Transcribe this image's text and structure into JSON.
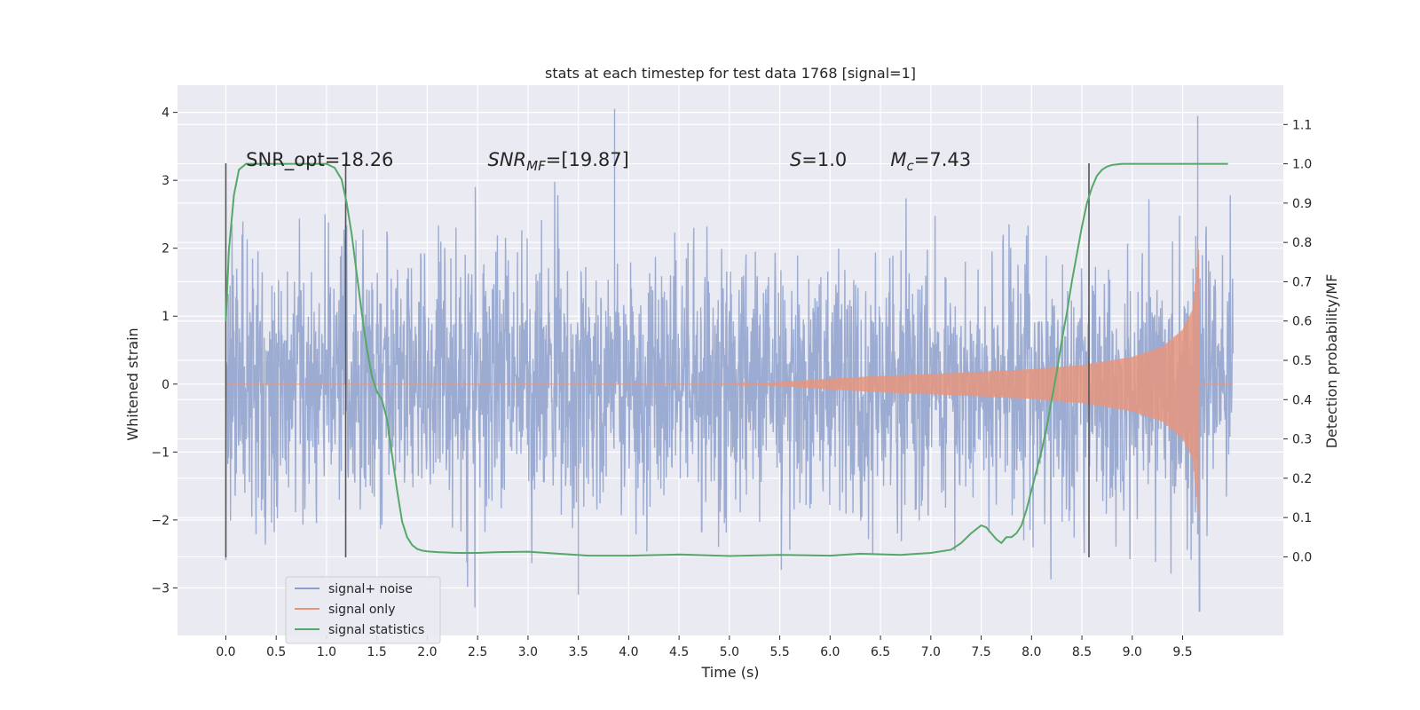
{
  "chart_data": {
    "type": "line",
    "title": "stats at each timestep for test data 1768 [signal=1]",
    "xlabel": "Time (s)",
    "ylabel": "Whitened strain",
    "y2label": "Detection probability/MF",
    "xlim": [
      -0.48,
      10.5
    ],
    "ylim": [
      -3.7,
      4.4
    ],
    "y2lim": [
      -0.2,
      1.2
    ],
    "xticks": [
      0.0,
      0.5,
      1.0,
      1.5,
      2.0,
      2.5,
      3.0,
      3.5,
      4.0,
      4.5,
      5.0,
      5.5,
      6.0,
      6.5,
      7.0,
      7.5,
      8.0,
      8.5,
      9.0,
      9.5
    ],
    "xtick_labels": [
      "0.0",
      "0.5",
      "1.0",
      "1.5",
      "2.0",
      "2.5",
      "3.0",
      "3.5",
      "4.0",
      "4.5",
      "5.0",
      "5.5",
      "6.0",
      "6.5",
      "7.0",
      "7.5",
      "8.0",
      "8.5",
      "9.0",
      "9.5"
    ],
    "yticks": [
      -3,
      -2,
      -1,
      0,
      1,
      2,
      3,
      4
    ],
    "ytick_labels": [
      "−3",
      "−2",
      "−1",
      "0",
      "1",
      "2",
      "3",
      "4"
    ],
    "y2ticks": [
      0.0,
      0.1,
      0.2,
      0.3,
      0.4,
      0.5,
      0.6,
      0.7,
      0.8,
      0.9,
      1.0,
      1.1
    ],
    "y2tick_labels": [
      "0.0",
      "0.1",
      "0.2",
      "0.3",
      "0.4",
      "0.5",
      "0.6",
      "0.7",
      "0.8",
      "0.9",
      "1.0",
      "1.1"
    ],
    "grid": true,
    "legend_position": "bottom-left",
    "series": [
      {
        "name": "signal+ noise",
        "axis": "left",
        "color": "#8da0cb",
        "description_duration_s": [
          0.0,
          10.0
        ],
        "approx_range": [
          -3.35,
          4.05
        ],
        "notable_peaks": [
          [
            3.86,
            4.05
          ],
          [
            9.65,
            3.95
          ],
          [
            3.5,
            -3.1
          ],
          [
            9.67,
            -3.35
          ]
        ]
      },
      {
        "name": "signal only",
        "axis": "left",
        "color": "#e5957e",
        "envelope": {
          "t": [
            0.0,
            5.0,
            5.5,
            6.0,
            6.5,
            7.0,
            7.5,
            8.0,
            8.5,
            9.0,
            9.3,
            9.5,
            9.6,
            9.66
          ],
          "amp": [
            0.0,
            0.0,
            0.03,
            0.08,
            0.12,
            0.15,
            0.18,
            0.22,
            0.28,
            0.4,
            0.55,
            0.8,
            1.1,
            2.0
          ]
        }
      },
      {
        "name": "signal statistics",
        "axis": "right",
        "color": "#55a868",
        "t": [
          0.0,
          0.03,
          0.08,
          0.13,
          0.2,
          0.35,
          0.5,
          0.7,
          0.85,
          1.0,
          1.08,
          1.15,
          1.2,
          1.25,
          1.3,
          1.35,
          1.4,
          1.45,
          1.5,
          1.55,
          1.6,
          1.65,
          1.7,
          1.75,
          1.8,
          1.85,
          1.9,
          1.95,
          2.0,
          2.1,
          2.3,
          2.5,
          2.7,
          3.0,
          3.3,
          3.6,
          4.0,
          4.5,
          5.0,
          5.5,
          6.0,
          6.3,
          6.7,
          7.0,
          7.2,
          7.3,
          7.4,
          7.5,
          7.55,
          7.6,
          7.65,
          7.7,
          7.75,
          7.8,
          7.85,
          7.9,
          7.95,
          8.0,
          8.05,
          8.1,
          8.15,
          8.2,
          8.25,
          8.3,
          8.35,
          8.4,
          8.45,
          8.5,
          8.55,
          8.6,
          8.65,
          8.7,
          8.75,
          8.8,
          8.9,
          9.0,
          9.3,
          9.6,
          9.95
        ],
        "values": [
          0.6,
          0.78,
          0.92,
          0.985,
          1.0,
          1.0,
          1.0,
          1.0,
          1.0,
          1.0,
          0.99,
          0.96,
          0.9,
          0.82,
          0.72,
          0.62,
          0.53,
          0.46,
          0.42,
          0.4,
          0.35,
          0.26,
          0.17,
          0.09,
          0.05,
          0.03,
          0.02,
          0.016,
          0.014,
          0.012,
          0.01,
          0.01,
          0.012,
          0.013,
          0.008,
          0.003,
          0.003,
          0.006,
          0.002,
          0.005,
          0.003,
          0.008,
          0.005,
          0.01,
          0.018,
          0.035,
          0.06,
          0.08,
          0.075,
          0.06,
          0.045,
          0.035,
          0.05,
          0.05,
          0.06,
          0.08,
          0.12,
          0.17,
          0.22,
          0.27,
          0.33,
          0.4,
          0.47,
          0.55,
          0.62,
          0.7,
          0.77,
          0.84,
          0.9,
          0.94,
          0.97,
          0.985,
          0.993,
          0.997,
          1.0,
          1.0,
          1.0,
          1.0,
          1.0
        ]
      }
    ],
    "vertical_lines": [
      {
        "x": 0.0,
        "y_range": [
          -2.55,
          3.25
        ]
      },
      {
        "x": 1.19,
        "y_range": [
          -2.55,
          3.25
        ]
      },
      {
        "x": 8.57,
        "y_range": [
          -2.55,
          3.25
        ]
      }
    ],
    "annotations": [
      {
        "id": "snr-opt",
        "text": "SNR_opt=18.26",
        "x": 0.2,
        "y": 3.3
      },
      {
        "id": "snr-mf",
        "x": 2.6,
        "y": 3.3,
        "sym": "SNR",
        "sub": "MF",
        "rest": "=[19.87]"
      },
      {
        "id": "s-value",
        "x": 5.6,
        "y": 3.3,
        "sym": "S",
        "sub": "",
        "rest": "=1.0"
      },
      {
        "id": "mc-value",
        "x": 6.6,
        "y": 3.3,
        "sym": "M",
        "sub": "c",
        "rest": "=7.43"
      }
    ]
  }
}
